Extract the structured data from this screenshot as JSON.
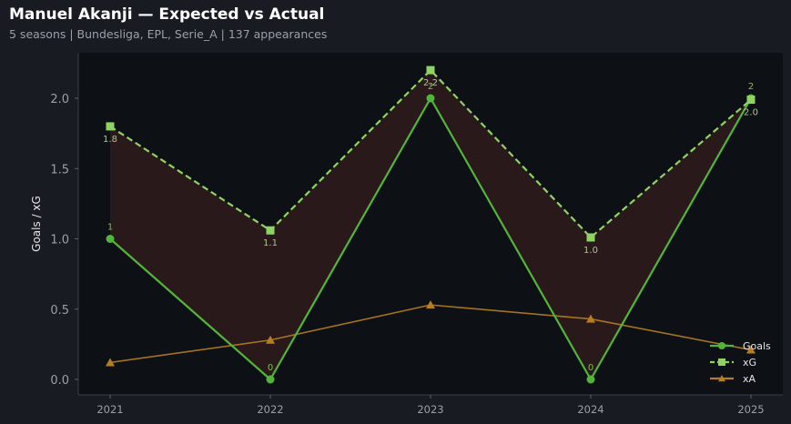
{
  "header": {
    "title": "Manuel Akanji — Expected vs Actual",
    "subtitle": "5 seasons | Bundesliga, EPL, Serie_A | 137 appearances"
  },
  "colors": {
    "background": "#181b21",
    "plot_background": "#0d1015",
    "goals": "#52b53a",
    "xg": "#8fd463",
    "xa": "#b57e22",
    "overperf_fill": "#2b1a1b",
    "tick_text": "#9aa0a8",
    "axis_label": "#e6e6e6"
  },
  "chart_data": {
    "type": "line",
    "x": [
      "2021",
      "2022",
      "2023",
      "2024",
      "2025"
    ],
    "ylabel": "Goals / xG",
    "xlabel": "",
    "ylim": [
      -0.1,
      2.28
    ],
    "yticks": [
      "0.0",
      "0.5",
      "1.0",
      "1.5",
      "2.0"
    ],
    "grid": false,
    "legend_position": "bottom-right",
    "series": [
      {
        "name": "Goals",
        "values": [
          1,
          0,
          2,
          0,
          2
        ],
        "labels": [
          "1",
          "0",
          "2",
          "0",
          "2"
        ],
        "marker": "circle",
        "line": "solid"
      },
      {
        "name": "xG",
        "values": [
          1.8,
          1.06,
          2.2,
          1.01,
          1.99
        ],
        "labels": [
          "1.8",
          "1.1",
          "2.2",
          "1.0",
          "2.0"
        ],
        "marker": "square",
        "line": "dashed"
      },
      {
        "name": "xA",
        "values": [
          0.12,
          0.28,
          0.53,
          0.43,
          0.21
        ],
        "marker": "triangle",
        "line": "solid"
      }
    ],
    "fill_between": [
      "Goals",
      "xG"
    ]
  }
}
